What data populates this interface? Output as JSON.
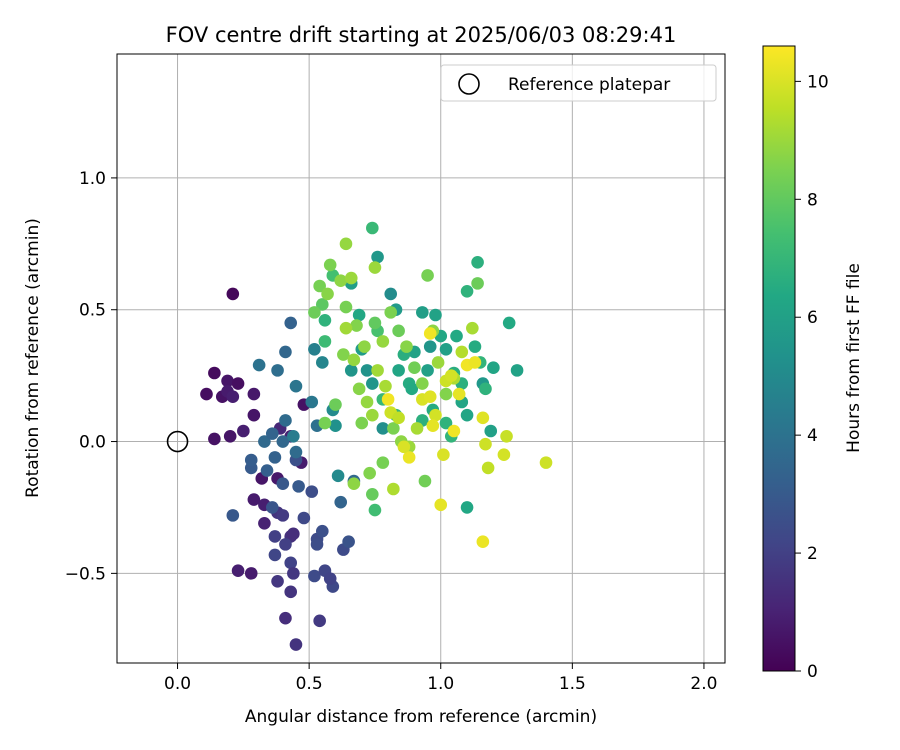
{
  "chart_data": {
    "type": "scatter",
    "title": "FOV centre drift starting at 2025/06/03 08:29:41",
    "xlabel": "Angular distance from reference (arcmin)",
    "ylabel": "Rotation from reference (arcmin)",
    "xlim": [
      -0.23,
      2.08
    ],
    "ylim": [
      -0.84,
      1.47
    ],
    "xticks": [
      0.0,
      0.5,
      1.0,
      1.5,
      2.0
    ],
    "xtick_labels": [
      "0.0",
      "0.5",
      "1.0",
      "1.5",
      "2.0"
    ],
    "yticks": [
      -0.5,
      0.0,
      0.5,
      1.0
    ],
    "ytick_labels": [
      "−0.5",
      "0.0",
      "0.5",
      "1.0"
    ],
    "grid": true,
    "legend": {
      "label": "Reference platepar",
      "placement": "top-right"
    },
    "reference_point": [
      0.0,
      0.0
    ],
    "colorbar": {
      "label": "Hours from first FF file",
      "range": [
        0,
        10.6
      ],
      "ticks": [
        0,
        2,
        4,
        6,
        8,
        10
      ],
      "tick_labels": [
        "0",
        "2",
        "4",
        "6",
        "8",
        "10"
      ],
      "colormap": "viridis"
    },
    "points": [
      [
        0.21,
        0.56,
        0.2
      ],
      [
        0.11,
        0.18,
        0.4
      ],
      [
        0.14,
        0.26,
        0.3
      ],
      [
        0.17,
        0.17,
        0.5
      ],
      [
        0.19,
        0.23,
        0.6
      ],
      [
        0.23,
        0.22,
        0.4
      ],
      [
        0.19,
        0.19,
        0.8
      ],
      [
        0.21,
        0.17,
        0.9
      ],
      [
        0.29,
        0.18,
        0.7
      ],
      [
        0.29,
        0.1,
        0.6
      ],
      [
        0.14,
        0.01,
        0.5
      ],
      [
        0.2,
        0.02,
        0.6
      ],
      [
        0.25,
        0.04,
        0.9
      ],
      [
        0.48,
        0.14,
        0.5
      ],
      [
        0.47,
        -0.08,
        0.8
      ],
      [
        0.43,
        0.02,
        1.0
      ],
      [
        0.39,
        0.05,
        1.2
      ],
      [
        0.32,
        -0.14,
        0.6
      ],
      [
        0.38,
        -0.14,
        0.7
      ],
      [
        0.33,
        -0.24,
        0.9
      ],
      [
        0.29,
        -0.22,
        0.8
      ],
      [
        0.33,
        -0.31,
        1.0
      ],
      [
        0.23,
        -0.49,
        0.9
      ],
      [
        0.28,
        -0.5,
        0.8
      ],
      [
        0.43,
        -0.36,
        1.5
      ],
      [
        0.44,
        -0.35,
        1.4
      ],
      [
        0.38,
        -0.27,
        1.6
      ],
      [
        0.37,
        -0.36,
        2.0
      ],
      [
        0.4,
        -0.28,
        1.8
      ],
      [
        0.37,
        -0.43,
        2.2
      ],
      [
        0.41,
        -0.39,
        2.0
      ],
      [
        0.43,
        -0.46,
        2.1
      ],
      [
        0.44,
        -0.5,
        1.7
      ],
      [
        0.43,
        -0.57,
        1.6
      ],
      [
        0.38,
        -0.53,
        1.7
      ],
      [
        0.41,
        -0.67,
        1.4
      ],
      [
        0.45,
        -0.77,
        1.6
      ],
      [
        0.54,
        -0.68,
        1.8
      ],
      [
        0.51,
        -0.19,
        2.5
      ],
      [
        0.48,
        -0.29,
        2.3
      ],
      [
        0.53,
        -0.37,
        2.4
      ],
      [
        0.55,
        -0.34,
        2.6
      ],
      [
        0.52,
        -0.51,
        2.4
      ],
      [
        0.56,
        -0.49,
        2.2
      ],
      [
        0.59,
        -0.55,
        2.3
      ],
      [
        0.58,
        -0.52,
        2.1
      ],
      [
        0.63,
        -0.41,
        2.4
      ],
      [
        0.65,
        -0.38,
        2.7
      ],
      [
        0.53,
        -0.39,
        2.5
      ],
      [
        0.21,
        -0.28,
        2.9
      ],
      [
        0.28,
        -0.1,
        3.0
      ],
      [
        0.28,
        -0.07,
        3.1
      ],
      [
        0.34,
        -0.11,
        3.2
      ],
      [
        0.36,
        -0.25,
        2.8
      ],
      [
        0.37,
        -0.06,
        3.3
      ],
      [
        0.33,
        0.0,
        3.6
      ],
      [
        0.36,
        0.03,
        3.4
      ],
      [
        0.4,
        0.0,
        3.5
      ],
      [
        0.45,
        -0.07,
        2.6
      ],
      [
        0.46,
        -0.17,
        3.0
      ],
      [
        0.4,
        -0.16,
        2.9
      ],
      [
        0.45,
        -0.04,
        3.7
      ],
      [
        0.38,
        0.27,
        3.8
      ],
      [
        0.31,
        0.29,
        4.0
      ],
      [
        0.41,
        0.34,
        3.5
      ],
      [
        0.43,
        0.45,
        3.3
      ],
      [
        0.45,
        0.21,
        4.1
      ],
      [
        0.41,
        0.08,
        3.7
      ],
      [
        0.44,
        0.02,
        4.4
      ],
      [
        0.51,
        0.15,
        4.2
      ],
      [
        0.52,
        0.35,
        4.6
      ],
      [
        0.55,
        0.3,
        4.8
      ],
      [
        0.59,
        0.12,
        5.0
      ],
      [
        0.61,
        -0.13,
        5.0
      ],
      [
        0.6,
        0.06,
        5.3
      ],
      [
        0.53,
        0.06,
        3.9
      ],
      [
        0.62,
        -0.23,
        3.4
      ],
      [
        0.67,
        -0.15,
        3.6
      ],
      [
        0.66,
        0.27,
        5.5
      ],
      [
        0.7,
        0.35,
        5.8
      ],
      [
        0.72,
        0.27,
        5.4
      ],
      [
        0.74,
        0.22,
        5.5
      ],
      [
        0.76,
        0.7,
        5.6
      ],
      [
        0.78,
        0.05,
        5.2
      ],
      [
        0.81,
        0.56,
        5.1
      ],
      [
        0.83,
        0.5,
        5.7
      ],
      [
        0.84,
        0.27,
        6.2
      ],
      [
        0.88,
        0.22,
        6.5
      ],
      [
        0.9,
        0.34,
        6.1
      ],
      [
        0.93,
        0.49,
        5.9
      ],
      [
        0.95,
        0.27,
        6.0
      ],
      [
        0.96,
        0.36,
        5.5
      ],
      [
        0.98,
        0.48,
        6.1
      ],
      [
        1.0,
        0.4,
        6.3
      ],
      [
        1.02,
        0.35,
        6.0
      ],
      [
        1.05,
        0.26,
        6.6
      ],
      [
        1.06,
        0.4,
        6.4
      ],
      [
        1.08,
        0.22,
        6.7
      ],
      [
        1.1,
        0.57,
        6.8
      ],
      [
        1.1,
        0.1,
        6.2
      ],
      [
        1.13,
        0.36,
        6.5
      ],
      [
        1.14,
        0.68,
        6.7
      ],
      [
        1.15,
        0.3,
        6.9
      ],
      [
        1.16,
        0.22,
        5.6
      ],
      [
        1.17,
        0.2,
        6.8
      ],
      [
        1.19,
        0.04,
        6.0
      ],
      [
        1.2,
        0.28,
        6.2
      ],
      [
        1.26,
        0.45,
        6.4
      ],
      [
        1.29,
        0.27,
        6.1
      ],
      [
        1.1,
        -0.25,
        6.3
      ],
      [
        1.02,
        0.07,
        6.8
      ],
      [
        1.04,
        0.02,
        6.9
      ],
      [
        1.08,
        0.15,
        6.2
      ],
      [
        0.97,
        0.12,
        6.5
      ],
      [
        0.93,
        0.08,
        6.7
      ],
      [
        0.89,
        0.2,
        6.4
      ],
      [
        0.86,
        0.33,
        6.6
      ],
      [
        0.83,
        0.1,
        6.9
      ],
      [
        0.78,
        0.16,
        7.0
      ],
      [
        0.74,
        0.81,
        7.1
      ],
      [
        0.75,
        -0.26,
        7.3
      ],
      [
        0.76,
        0.42,
        7.5
      ],
      [
        0.66,
        0.6,
        5.9
      ],
      [
        0.69,
        0.48,
        6.3
      ],
      [
        0.56,
        0.46,
        6.8
      ],
      [
        0.56,
        0.38,
        7.2
      ],
      [
        0.59,
        0.63,
        7.4
      ],
      [
        0.55,
        0.52,
        7.9
      ],
      [
        0.52,
        0.49,
        8.2
      ],
      [
        0.58,
        0.67,
        8.5
      ],
      [
        0.54,
        0.59,
        8.4
      ],
      [
        0.57,
        0.56,
        8.7
      ],
      [
        0.62,
        0.61,
        8.8
      ],
      [
        0.64,
        0.75,
        8.9
      ],
      [
        0.66,
        0.62,
        9.0
      ],
      [
        0.64,
        0.51,
        8.4
      ],
      [
        0.68,
        0.44,
        8.6
      ],
      [
        0.71,
        0.36,
        8.8
      ],
      [
        0.75,
        0.45,
        8.0
      ],
      [
        0.78,
        0.38,
        8.9
      ],
      [
        0.81,
        0.49,
        8.5
      ],
      [
        0.84,
        0.42,
        8.2
      ],
      [
        0.87,
        0.36,
        8.7
      ],
      [
        0.9,
        0.28,
        8.3
      ],
      [
        0.93,
        0.22,
        8.6
      ],
      [
        0.95,
        0.63,
        8.4
      ],
      [
        0.97,
        0.42,
        8.8
      ],
      [
        0.99,
        0.3,
        9.0
      ],
      [
        1.02,
        0.18,
        8.6
      ],
      [
        1.05,
        0.24,
        9.3
      ],
      [
        1.08,
        0.34,
        9.4
      ],
      [
        1.12,
        0.43,
        9.2
      ],
      [
        1.14,
        0.6,
        8.2
      ],
      [
        0.75,
        0.66,
        9.0
      ],
      [
        0.69,
        0.2,
        8.7
      ],
      [
        0.72,
        0.15,
        8.9
      ],
      [
        0.74,
        0.1,
        9.0
      ],
      [
        0.76,
        0.27,
        9.1
      ],
      [
        0.79,
        0.21,
        9.2
      ],
      [
        0.82,
        0.05,
        8.5
      ],
      [
        0.85,
        0.0,
        8.8
      ],
      [
        0.88,
        -0.02,
        9.0
      ],
      [
        0.91,
        0.05,
        9.2
      ],
      [
        0.73,
        -0.12,
        8.6
      ],
      [
        0.74,
        -0.2,
        8.1
      ],
      [
        0.78,
        -0.08,
        8.4
      ],
      [
        0.82,
        -0.18,
        9.3
      ],
      [
        0.94,
        -0.15,
        8.3
      ],
      [
        0.7,
        0.07,
        8.5
      ],
      [
        0.67,
        -0.16,
        8.8
      ],
      [
        0.6,
        0.14,
        8.2
      ],
      [
        0.56,
        0.07,
        8.4
      ],
      [
        0.63,
        0.33,
        8.6
      ],
      [
        0.67,
        0.31,
        8.9
      ],
      [
        0.64,
        0.43,
        9.1
      ],
      [
        0.81,
        0.11,
        9.8
      ],
      [
        0.84,
        0.09,
        9.6
      ],
      [
        0.88,
        -0.06,
        10.3
      ],
      [
        0.93,
        0.16,
        10.0
      ],
      [
        0.96,
        0.17,
        10.1
      ],
      [
        0.98,
        0.1,
        9.9
      ],
      [
        1.0,
        -0.24,
        10.2
      ],
      [
        1.01,
        -0.05,
        10.0
      ],
      [
        1.02,
        0.23,
        9.8
      ],
      [
        1.05,
        0.04,
        10.4
      ],
      [
        1.07,
        0.18,
        10.2
      ],
      [
        1.1,
        0.29,
        10.4
      ],
      [
        1.13,
        0.3,
        10.3
      ],
      [
        1.16,
        0.09,
        10.1
      ],
      [
        1.17,
        -0.01,
        9.8
      ],
      [
        1.18,
        -0.1,
        9.6
      ],
      [
        1.16,
        -0.38,
        10.3
      ],
      [
        1.25,
        0.02,
        9.7
      ],
      [
        1.24,
        -0.05,
        9.9
      ],
      [
        1.4,
        -0.08,
        9.8
      ],
      [
        0.8,
        0.16,
        10.4
      ],
      [
        0.86,
        -0.02,
        10.0
      ],
      [
        0.96,
        0.41,
        10.4
      ],
      [
        0.97,
        0.06,
        10.2
      ],
      [
        1.04,
        0.25,
        9.9
      ]
    ]
  }
}
